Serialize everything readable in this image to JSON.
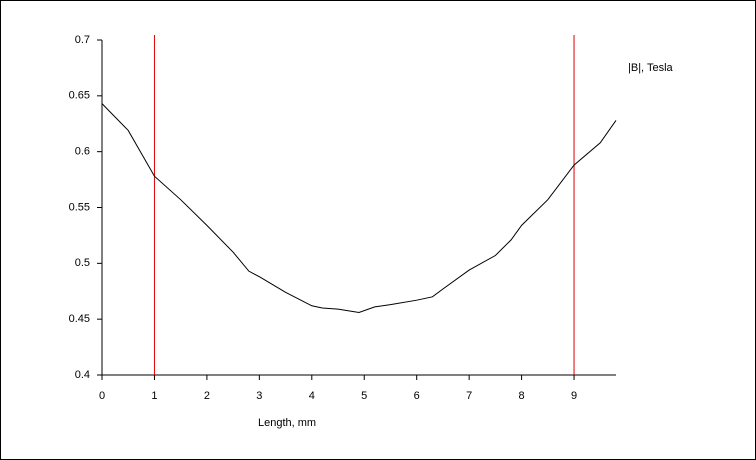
{
  "chart_data": {
    "type": "line",
    "x_label": "Length, mm",
    "y_label": "|B|, Tesla",
    "x": [
      0,
      0.5,
      1,
      1.5,
      2,
      2.5,
      2.8,
      3,
      3.5,
      4,
      4.2,
      4.5,
      4.9,
      5.2,
      5.5,
      6,
      6.3,
      6.5,
      7,
      7.5,
      7.8,
      8,
      8.5,
      9,
      9.5,
      9.8
    ],
    "series": [
      {
        "color": "#000000",
        "values": [
          0.643,
          0.619,
          0.578,
          0.557,
          0.534,
          0.51,
          0.493,
          0.488,
          0.474,
          0.462,
          0.46,
          0.459,
          0.456,
          0.461,
          0.463,
          0.467,
          0.47,
          0.477,
          0.494,
          0.507,
          0.521,
          0.534,
          0.557,
          0.588,
          0.608,
          0.628
        ]
      }
    ],
    "xlim": [
      0,
      9.8
    ],
    "xticks": [
      0,
      1,
      2,
      3,
      4,
      5,
      6,
      7,
      8,
      9
    ],
    "ylim": [
      0.4,
      0.7
    ],
    "yticks": [
      0.4,
      0.45,
      0.5,
      0.55,
      0.6,
      0.65,
      0.7
    ],
    "vlines": [
      1,
      9
    ],
    "vline_color": "#e00000",
    "grid": false
  }
}
